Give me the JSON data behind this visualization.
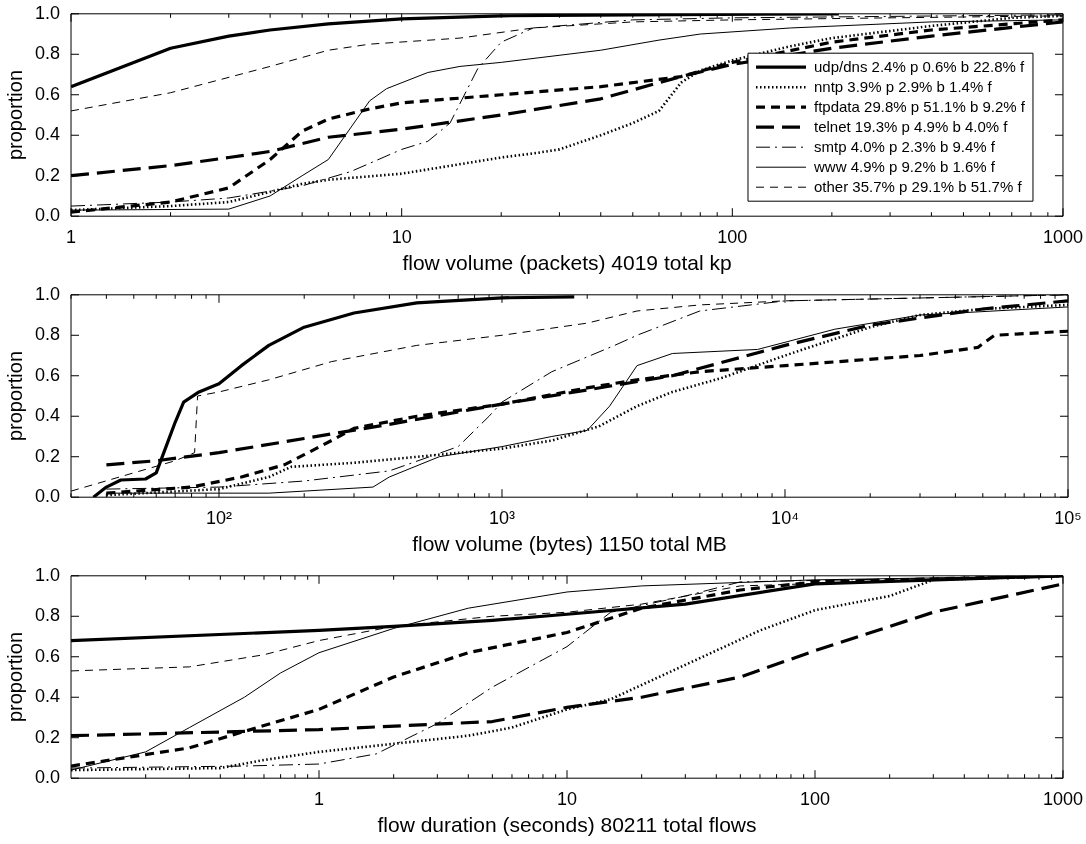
{
  "chart_data": [
    {
      "type": "line",
      "xlabel": "flow volume (packets) 4019 total kp",
      "ylabel": "proportion",
      "log": "x",
      "legend": "right",
      "grid": false,
      "xlim": [
        1,
        1000
      ],
      "xticks": [
        1,
        {
          "value": 2,
          "label": null
        },
        {
          "value": 3,
          "label": null
        },
        {
          "value": 4,
          "label": null
        },
        {
          "value": 5,
          "label": null
        },
        {
          "value": 6,
          "label": null
        },
        {
          "value": 7,
          "label": null
        },
        {
          "value": 8,
          "label": null
        },
        {
          "value": 9,
          "label": null
        },
        10,
        {
          "value": 20,
          "label": null
        },
        {
          "value": 30,
          "label": null
        },
        {
          "value": 40,
          "label": null
        },
        {
          "value": 50,
          "label": null
        },
        {
          "value": 60,
          "label": null
        },
        {
          "value": 70,
          "label": null
        },
        {
          "value": 80,
          "label": null
        },
        {
          "value": 90,
          "label": null
        },
        100,
        {
          "value": 200,
          "label": null
        },
        {
          "value": 300,
          "label": null
        },
        {
          "value": 400,
          "label": null
        },
        {
          "value": 500,
          "label": null
        },
        {
          "value": 600,
          "label": null
        },
        {
          "value": 700,
          "label": null
        },
        {
          "value": 800,
          "label": null
        },
        {
          "value": 900,
          "label": null
        },
        1000
      ],
      "ylim": [
        0,
        1
      ],
      "yticks": [
        {
          "value": 0,
          "label": "0.0"
        },
        {
          "value": 0.2,
          "label": "0.2"
        },
        {
          "value": 0.4,
          "label": "0.4"
        },
        {
          "value": 0.6,
          "label": "0.6"
        },
        {
          "value": 0.8,
          "label": "0.8"
        },
        {
          "value": 1,
          "label": "1.0"
        }
      ],
      "series": [
        {
          "name": "udp/dns 2.4% p 0.6% b 22.8% f",
          "color": "#000000",
          "line_style": "solid",
          "x": [
            1,
            2,
            3,
            4,
            6,
            10,
            20,
            50,
            210
          ],
          "values": [
            0.64,
            0.83,
            0.89,
            0.92,
            0.95,
            0.975,
            0.99,
            0.995,
            1.0
          ]
        },
        {
          "name": "nntp 3.9% p 2.9% b 1.4% f",
          "color": "#000000",
          "line_style": "dotted",
          "x": [
            1,
            2,
            3,
            4,
            5,
            6,
            10,
            20,
            25,
            30,
            40,
            50,
            60,
            70,
            80,
            100,
            150,
            200,
            400,
            700,
            1000
          ],
          "values": [
            0.03,
            0.05,
            0.07,
            0.12,
            0.16,
            0.18,
            0.21,
            0.29,
            0.31,
            0.33,
            0.4,
            0.46,
            0.52,
            0.66,
            0.72,
            0.77,
            0.84,
            0.88,
            0.94,
            0.98,
            0.99
          ]
        },
        {
          "name": "ftpdata 29.8% p 51.1% b 9.2% f",
          "color": "#000000",
          "line_style": "dashed",
          "x": [
            1,
            2,
            3,
            4,
            5,
            6,
            8,
            10,
            20,
            40,
            70,
            100,
            200,
            400,
            1000
          ],
          "values": [
            0.02,
            0.07,
            0.14,
            0.28,
            0.42,
            0.48,
            0.53,
            0.56,
            0.6,
            0.64,
            0.69,
            0.76,
            0.86,
            0.92,
            0.97
          ]
        },
        {
          "name": "telnet 19.3% p 4.9% b 4.0% f",
          "color": "#000000",
          "line_style": "dashed",
          "x": [
            1,
            2,
            3,
            4,
            6,
            10,
            20,
            40,
            70,
            100,
            200,
            400,
            1000
          ],
          "values": [
            0.2,
            0.25,
            0.29,
            0.32,
            0.39,
            0.43,
            0.5,
            0.58,
            0.69,
            0.75,
            0.83,
            0.89,
            0.96
          ]
        },
        {
          "name": "smtp 4.0% p 2.3% b 9.4% f",
          "color": "#000000",
          "line_style": "dashed",
          "x": [
            1,
            2,
            3,
            5,
            7,
            10,
            12,
            14,
            17,
            20,
            25,
            50,
            100,
            1000
          ],
          "values": [
            0.05,
            0.07,
            0.09,
            0.15,
            0.22,
            0.33,
            0.37,
            0.46,
            0.73,
            0.86,
            0.93,
            0.97,
            0.98,
            0.995
          ]
        },
        {
          "name": "www 4.9% p 9.2% b 1.6% f",
          "color": "#000000",
          "line_style": "solid",
          "x": [
            1,
            3,
            4,
            5,
            6,
            8,
            9,
            12,
            15,
            20,
            40,
            60,
            80,
            150,
            400,
            1000
          ],
          "values": [
            0.03,
            0.035,
            0.1,
            0.2,
            0.28,
            0.57,
            0.63,
            0.71,
            0.74,
            0.76,
            0.82,
            0.87,
            0.9,
            0.93,
            0.96,
            0.97
          ]
        },
        {
          "name": "other 35.7% p 29.1% b 51.7% f",
          "color": "#000000",
          "line_style": "dashed",
          "x": [
            1,
            2,
            4,
            6,
            8,
            15,
            25,
            50,
            100,
            300,
            1000
          ],
          "values": [
            0.52,
            0.61,
            0.74,
            0.82,
            0.85,
            0.88,
            0.93,
            0.96,
            0.97,
            0.98,
            0.99
          ]
        }
      ]
    },
    {
      "type": "line",
      "xlabel": "flow volume (bytes) 1150 total MB",
      "ylabel": "proportion",
      "log": "x",
      "grid": false,
      "xlim": [
        30,
        100000
      ],
      "xticks": [
        {
          "value": 30,
          "label": null
        },
        {
          "value": 40,
          "label": null
        },
        {
          "value": 50,
          "label": null
        },
        {
          "value": 60,
          "label": null
        },
        {
          "value": 70,
          "label": null
        },
        {
          "value": 80,
          "label": null
        },
        {
          "value": 90,
          "label": null
        },
        {
          "value": 100,
          "label": "10²"
        },
        {
          "value": 200,
          "label": null
        },
        {
          "value": 300,
          "label": null
        },
        {
          "value": 400,
          "label": null
        },
        {
          "value": 500,
          "label": null
        },
        {
          "value": 600,
          "label": null
        },
        {
          "value": 700,
          "label": null
        },
        {
          "value": 800,
          "label": null
        },
        {
          "value": 900,
          "label": null
        },
        {
          "value": 1000,
          "label": "10³"
        },
        {
          "value": 2000,
          "label": null
        },
        {
          "value": 3000,
          "label": null
        },
        {
          "value": 4000,
          "label": null
        },
        {
          "value": 5000,
          "label": null
        },
        {
          "value": 6000,
          "label": null
        },
        {
          "value": 7000,
          "label": null
        },
        {
          "value": 8000,
          "label": null
        },
        {
          "value": 9000,
          "label": null
        },
        {
          "value": 10000,
          "label": "10⁴"
        },
        {
          "value": 20000,
          "label": null
        },
        {
          "value": 30000,
          "label": null
        },
        {
          "value": 40000,
          "label": null
        },
        {
          "value": 50000,
          "label": null
        },
        {
          "value": 60000,
          "label": null
        },
        {
          "value": 70000,
          "label": null
        },
        {
          "value": 80000,
          "label": null
        },
        {
          "value": 90000,
          "label": null
        },
        {
          "value": 100000,
          "label": "10⁵"
        }
      ],
      "ylim": [
        0,
        1
      ],
      "yticks": [
        {
          "value": 0,
          "label": "0.0"
        },
        {
          "value": 0.2,
          "label": "0.2"
        },
        {
          "value": 0.4,
          "label": "0.4"
        },
        {
          "value": 0.6,
          "label": "0.6"
        },
        {
          "value": 0.8,
          "label": "0.8"
        },
        {
          "value": 1,
          "label": "1.0"
        }
      ],
      "series": [
        {
          "color": "#000000",
          "line_style": "solid",
          "x": [
            36,
            40,
            45,
            55,
            60,
            65,
            70,
            75,
            85,
            100,
            120,
            150,
            200,
            300,
            500,
            1000,
            1800
          ],
          "values": [
            0.0,
            0.05,
            0.085,
            0.09,
            0.12,
            0.25,
            0.37,
            0.47,
            0.52,
            0.56,
            0.65,
            0.75,
            0.84,
            0.91,
            0.96,
            0.985,
            0.99
          ]
        },
        {
          "color": "#000000",
          "line_style": "dotted",
          "x": [
            40,
            100,
            150,
            180,
            300,
            600,
            1000,
            1500,
            2200,
            3000,
            4000,
            6000,
            10000,
            20000,
            30000,
            50000,
            100000
          ],
          "values": [
            0.01,
            0.04,
            0.1,
            0.15,
            0.17,
            0.21,
            0.24,
            0.28,
            0.35,
            0.45,
            0.52,
            0.59,
            0.7,
            0.84,
            0.9,
            0.93,
            0.95
          ]
        },
        {
          "color": "#000000",
          "line_style": "dashed",
          "x": [
            40,
            80,
            120,
            170,
            200,
            250,
            300,
            500,
            1000,
            2000,
            3000,
            5000,
            10000,
            30000,
            48000,
            55000,
            100000
          ],
          "values": [
            0.02,
            0.05,
            0.1,
            0.16,
            0.21,
            0.28,
            0.34,
            0.4,
            0.46,
            0.54,
            0.58,
            0.62,
            0.65,
            0.7,
            0.74,
            0.8,
            0.82
          ]
        },
        {
          "color": "#000000",
          "line_style": "dashed",
          "x": [
            40,
            60,
            100,
            200,
            400,
            1000,
            2000,
            4000,
            10000,
            20000,
            50000,
            100000
          ],
          "values": [
            0.16,
            0.18,
            0.22,
            0.29,
            0.36,
            0.46,
            0.53,
            0.6,
            0.75,
            0.85,
            0.93,
            0.97
          ]
        },
        {
          "color": "#000000",
          "line_style": "dashed",
          "x": [
            40,
            100,
            200,
            400,
            700,
            900,
            1000,
            1500,
            2500,
            3000,
            5000,
            10000,
            100000
          ],
          "values": [
            0.04,
            0.05,
            0.08,
            0.13,
            0.25,
            0.4,
            0.47,
            0.62,
            0.75,
            0.8,
            0.92,
            0.97,
            1.0
          ]
        },
        {
          "color": "#000000",
          "line_style": "solid",
          "x": [
            40,
            150,
            350,
            400,
            600,
            1000,
            1500,
            2000,
            2400,
            3000,
            4000,
            8000,
            15000,
            30000,
            100000
          ],
          "values": [
            0.02,
            0.02,
            0.05,
            0.1,
            0.2,
            0.25,
            0.3,
            0.33,
            0.45,
            0.65,
            0.71,
            0.73,
            0.83,
            0.9,
            0.94
          ]
        },
        {
          "color": "#000000",
          "line_style": "dashed",
          "x": [
            30,
            70,
            82,
            84,
            100,
            150,
            250,
            500,
            1000,
            2000,
            3000,
            5000,
            10000,
            100000
          ],
          "values": [
            0.03,
            0.18,
            0.22,
            0.5,
            0.52,
            0.58,
            0.67,
            0.75,
            0.8,
            0.86,
            0.92,
            0.95,
            0.97,
            1.0
          ]
        }
      ]
    },
    {
      "type": "line",
      "xlabel": "flow duration (seconds) 80211 total flows",
      "ylabel": "proportion",
      "log": "x",
      "grid": false,
      "xlim": [
        0.1,
        1000
      ],
      "xticks": [
        {
          "value": 0.2,
          "label": null
        },
        {
          "value": 0.3,
          "label": null
        },
        {
          "value": 0.4,
          "label": null
        },
        {
          "value": 0.5,
          "label": null
        },
        {
          "value": 0.6,
          "label": null
        },
        {
          "value": 0.7,
          "label": null
        },
        {
          "value": 0.8,
          "label": null
        },
        {
          "value": 0.9,
          "label": null
        },
        1,
        {
          "value": 2,
          "label": null
        },
        {
          "value": 3,
          "label": null
        },
        {
          "value": 4,
          "label": null
        },
        {
          "value": 5,
          "label": null
        },
        {
          "value": 6,
          "label": null
        },
        {
          "value": 7,
          "label": null
        },
        {
          "value": 8,
          "label": null
        },
        {
          "value": 9,
          "label": null
        },
        10,
        {
          "value": 20,
          "label": null
        },
        {
          "value": 30,
          "label": null
        },
        {
          "value": 40,
          "label": null
        },
        {
          "value": 50,
          "label": null
        },
        {
          "value": 60,
          "label": null
        },
        {
          "value": 70,
          "label": null
        },
        {
          "value": 80,
          "label": null
        },
        {
          "value": 90,
          "label": null
        },
        100,
        {
          "value": 200,
          "label": null
        },
        {
          "value": 300,
          "label": null
        },
        {
          "value": 400,
          "label": null
        },
        {
          "value": 500,
          "label": null
        },
        {
          "value": 600,
          "label": null
        },
        {
          "value": 700,
          "label": null
        },
        {
          "value": 800,
          "label": null
        },
        {
          "value": 900,
          "label": null
        },
        1000
      ],
      "ylim": [
        0,
        1
      ],
      "yticks": [
        {
          "value": 0,
          "label": "0.0"
        },
        {
          "value": 0.2,
          "label": "0.2"
        },
        {
          "value": 0.4,
          "label": "0.4"
        },
        {
          "value": 0.6,
          "label": "0.6"
        },
        {
          "value": 0.8,
          "label": "0.8"
        },
        {
          "value": 1,
          "label": "1.0"
        }
      ],
      "series": [
        {
          "color": "#000000",
          "line_style": "solid",
          "x": [
            0.1,
            1,
            2,
            5,
            10,
            30,
            100,
            1000
          ],
          "values": [
            0.68,
            0.73,
            0.75,
            0.78,
            0.81,
            0.86,
            0.96,
            1.0
          ]
        },
        {
          "color": "#000000",
          "line_style": "dotted",
          "x": [
            0.1,
            0.4,
            0.6,
            1,
            2,
            4,
            6,
            10,
            15,
            30,
            60,
            100,
            200,
            300,
            1000
          ],
          "values": [
            0.04,
            0.05,
            0.09,
            0.13,
            0.17,
            0.21,
            0.25,
            0.34,
            0.39,
            0.56,
            0.73,
            0.83,
            0.9,
            0.98,
            1.0
          ]
        },
        {
          "color": "#000000",
          "line_style": "dashed",
          "x": [
            0.1,
            0.3,
            0.6,
            1,
            2,
            4,
            10,
            20,
            50,
            100,
            1000
          ],
          "values": [
            0.06,
            0.15,
            0.26,
            0.34,
            0.5,
            0.62,
            0.72,
            0.84,
            0.93,
            0.97,
            1.0
          ]
        },
        {
          "color": "#000000",
          "line_style": "dashed",
          "x": [
            0.1,
            1,
            5,
            10,
            20,
            50,
            100,
            300,
            1000
          ],
          "values": [
            0.21,
            0.24,
            0.28,
            0.35,
            0.4,
            0.5,
            0.63,
            0.82,
            0.96
          ]
        },
        {
          "color": "#000000",
          "line_style": "dashed",
          "x": [
            0.1,
            0.5,
            1,
            1.7,
            3,
            5,
            10,
            15,
            30,
            50,
            1000
          ],
          "values": [
            0.05,
            0.06,
            0.07,
            0.12,
            0.27,
            0.45,
            0.65,
            0.82,
            0.9,
            0.97,
            1.0
          ]
        },
        {
          "color": "#000000",
          "line_style": "solid",
          "x": [
            0.1,
            0.2,
            0.3,
            0.5,
            0.7,
            1,
            2,
            4,
            10,
            20,
            100,
            1000
          ],
          "values": [
            0.04,
            0.13,
            0.25,
            0.4,
            0.52,
            0.62,
            0.74,
            0.84,
            0.92,
            0.95,
            0.98,
            1.0
          ]
        },
        {
          "color": "#000000",
          "line_style": "dashed",
          "x": [
            0.1,
            0.3,
            0.6,
            1,
            2,
            5,
            10,
            20,
            50,
            1000
          ],
          "values": [
            0.53,
            0.55,
            0.61,
            0.68,
            0.75,
            0.8,
            0.82,
            0.86,
            0.95,
            1.0
          ]
        }
      ]
    }
  ]
}
